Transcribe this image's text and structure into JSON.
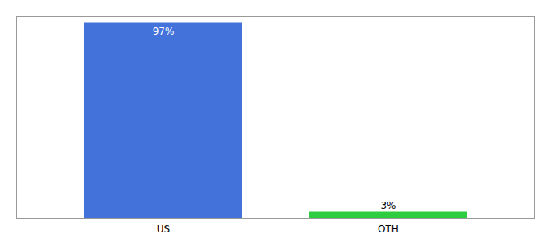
{
  "chart_data": {
    "type": "bar",
    "categories": [
      "US",
      "OTH"
    ],
    "values": [
      97,
      3
    ],
    "colors": [
      "#4472db",
      "#2ecc40"
    ],
    "ylim": [
      0,
      100
    ],
    "yticks": [],
    "data_labels": true,
    "value_labels": [
      "97%",
      "3%"
    ],
    "tick_labels": "x"
  }
}
